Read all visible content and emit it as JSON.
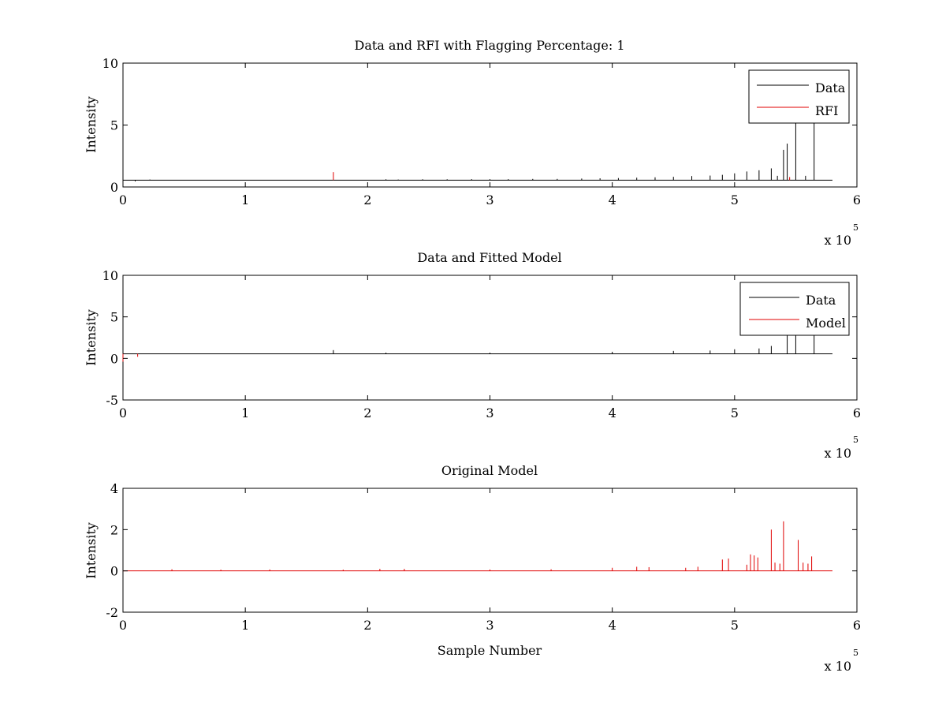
{
  "colors": {
    "data": "#000000",
    "rfi": "#e00000",
    "model": "#e00000",
    "axes": "#000000",
    "background": "#ffffff"
  },
  "chart_data": [
    {
      "type": "line",
      "title": "Data and RFI with Flagging Percentage: 1",
      "xlabel": "",
      "ylabel": "Intensity",
      "x_multiplier": {
        "base": "x 10",
        "exponent": "5"
      },
      "xlim": [
        0,
        600000
      ],
      "ylim": [
        0,
        10
      ],
      "xticks": [
        0,
        100000,
        200000,
        300000,
        400000,
        500000,
        600000
      ],
      "xtick_labels": [
        "0",
        "1",
        "2",
        "3",
        "4",
        "5",
        "6"
      ],
      "yticks": [
        0,
        5,
        10
      ],
      "ytick_labels": [
        "0",
        "5",
        "10"
      ],
      "grid": false,
      "legend": {
        "placement": "top-right",
        "entries": [
          "Data",
          "RFI"
        ]
      },
      "baseline": {
        "start": 0,
        "end": 580000,
        "level": 0.55
      },
      "series": [
        {
          "name": "Data",
          "color": "#000000",
          "spikes": [
            [
              10000,
              0.45
            ],
            [
              22000,
              0.6
            ],
            [
              215000,
              0.62
            ],
            [
              225000,
              0.6
            ],
            [
              245000,
              0.62
            ],
            [
              265000,
              0.62
            ],
            [
              285000,
              0.63
            ],
            [
              300000,
              0.63
            ],
            [
              315000,
              0.63
            ],
            [
              335000,
              0.65
            ],
            [
              355000,
              0.65
            ],
            [
              375000,
              0.68
            ],
            [
              390000,
              0.7
            ],
            [
              405000,
              0.72
            ],
            [
              420000,
              0.75
            ],
            [
              435000,
              0.78
            ],
            [
              450000,
              0.82
            ],
            [
              465000,
              0.88
            ],
            [
              480000,
              0.92
            ],
            [
              490000,
              0.98
            ],
            [
              500000,
              1.1
            ],
            [
              510000,
              1.25
            ],
            [
              520000,
              1.35
            ],
            [
              530000,
              1.5
            ],
            [
              535000,
              0.9
            ],
            [
              540000,
              3.0
            ],
            [
              543000,
              3.5
            ],
            [
              550000,
              5.3
            ],
            [
              558000,
              0.9
            ],
            [
              565000,
              5.3
            ]
          ]
        },
        {
          "name": "RFI",
          "color": "#e00000",
          "spikes": [
            [
              172000,
              1.2
            ],
            [
              545000,
              0.8
            ]
          ]
        }
      ]
    },
    {
      "type": "line",
      "title": "Data and Fitted Model",
      "xlabel": "",
      "ylabel": "Intensity",
      "x_multiplier": {
        "base": "x 10",
        "exponent": "5"
      },
      "xlim": [
        0,
        600000
      ],
      "ylim": [
        -5,
        10
      ],
      "xticks": [
        0,
        100000,
        200000,
        300000,
        400000,
        500000,
        600000
      ],
      "xtick_labels": [
        "0",
        "1",
        "2",
        "3",
        "4",
        "5",
        "6"
      ],
      "yticks": [
        -5,
        0,
        5,
        10
      ],
      "ytick_labels": [
        "-5",
        "0",
        "5",
        "10"
      ],
      "grid": false,
      "legend": {
        "placement": "top-right",
        "entries": [
          "Data",
          "Model"
        ]
      },
      "baseline": {
        "start": 0,
        "end": 580000,
        "level": 0.55
      },
      "series": [
        {
          "name": "Data",
          "color": "#000000",
          "spikes": [
            [
              172000,
              1.0
            ],
            [
              215000,
              0.7
            ],
            [
              300000,
              0.7
            ],
            [
              400000,
              0.8
            ],
            [
              450000,
              0.9
            ],
            [
              480000,
              0.95
            ],
            [
              500000,
              1.1
            ],
            [
              520000,
              1.2
            ],
            [
              530000,
              1.5
            ],
            [
              543000,
              3.0
            ],
            [
              550000,
              5.5
            ],
            [
              565000,
              5.5
            ]
          ]
        },
        {
          "name": "Model",
          "color": "#e00000",
          "spikes": [
            [
              0,
              -0.4
            ],
            [
              12000,
              0.2
            ]
          ]
        }
      ]
    },
    {
      "type": "line",
      "title": "Original Model",
      "xlabel": "Sample Number",
      "ylabel": "Intensity",
      "x_multiplier": {
        "base": "x 10",
        "exponent": "5"
      },
      "xlim": [
        0,
        600000
      ],
      "ylim": [
        -2,
        4
      ],
      "xticks": [
        0,
        100000,
        200000,
        300000,
        400000,
        500000,
        600000
      ],
      "xtick_labels": [
        "0",
        "1",
        "2",
        "3",
        "4",
        "5",
        "6"
      ],
      "yticks": [
        -2,
        0,
        2,
        4
      ],
      "ytick_labels": [
        "-2",
        "0",
        "2",
        "4"
      ],
      "grid": false,
      "legend": null,
      "baseline": {
        "start": 0,
        "end": 580000,
        "level": 0.0
      },
      "series": [
        {
          "color": "#e00000",
          "spikes": [
            [
              40000,
              0.08
            ],
            [
              80000,
              0.06
            ],
            [
              120000,
              0.07
            ],
            [
              180000,
              0.06
            ],
            [
              210000,
              0.1
            ],
            [
              230000,
              0.1
            ],
            [
              300000,
              0.07
            ],
            [
              350000,
              0.08
            ],
            [
              400000,
              0.15
            ],
            [
              420000,
              0.2
            ],
            [
              430000,
              0.18
            ],
            [
              460000,
              0.15
            ],
            [
              470000,
              0.2
            ],
            [
              490000,
              0.55
            ],
            [
              495000,
              0.6
            ],
            [
              510000,
              0.3
            ],
            [
              513000,
              0.8
            ],
            [
              516000,
              0.75
            ],
            [
              519000,
              0.65
            ],
            [
              530000,
              2.0
            ],
            [
              533000,
              0.4
            ],
            [
              537000,
              0.35
            ],
            [
              540000,
              2.4
            ],
            [
              552000,
              1.5
            ],
            [
              556000,
              0.4
            ],
            [
              560000,
              0.35
            ],
            [
              563000,
              0.7
            ]
          ]
        }
      ]
    }
  ]
}
